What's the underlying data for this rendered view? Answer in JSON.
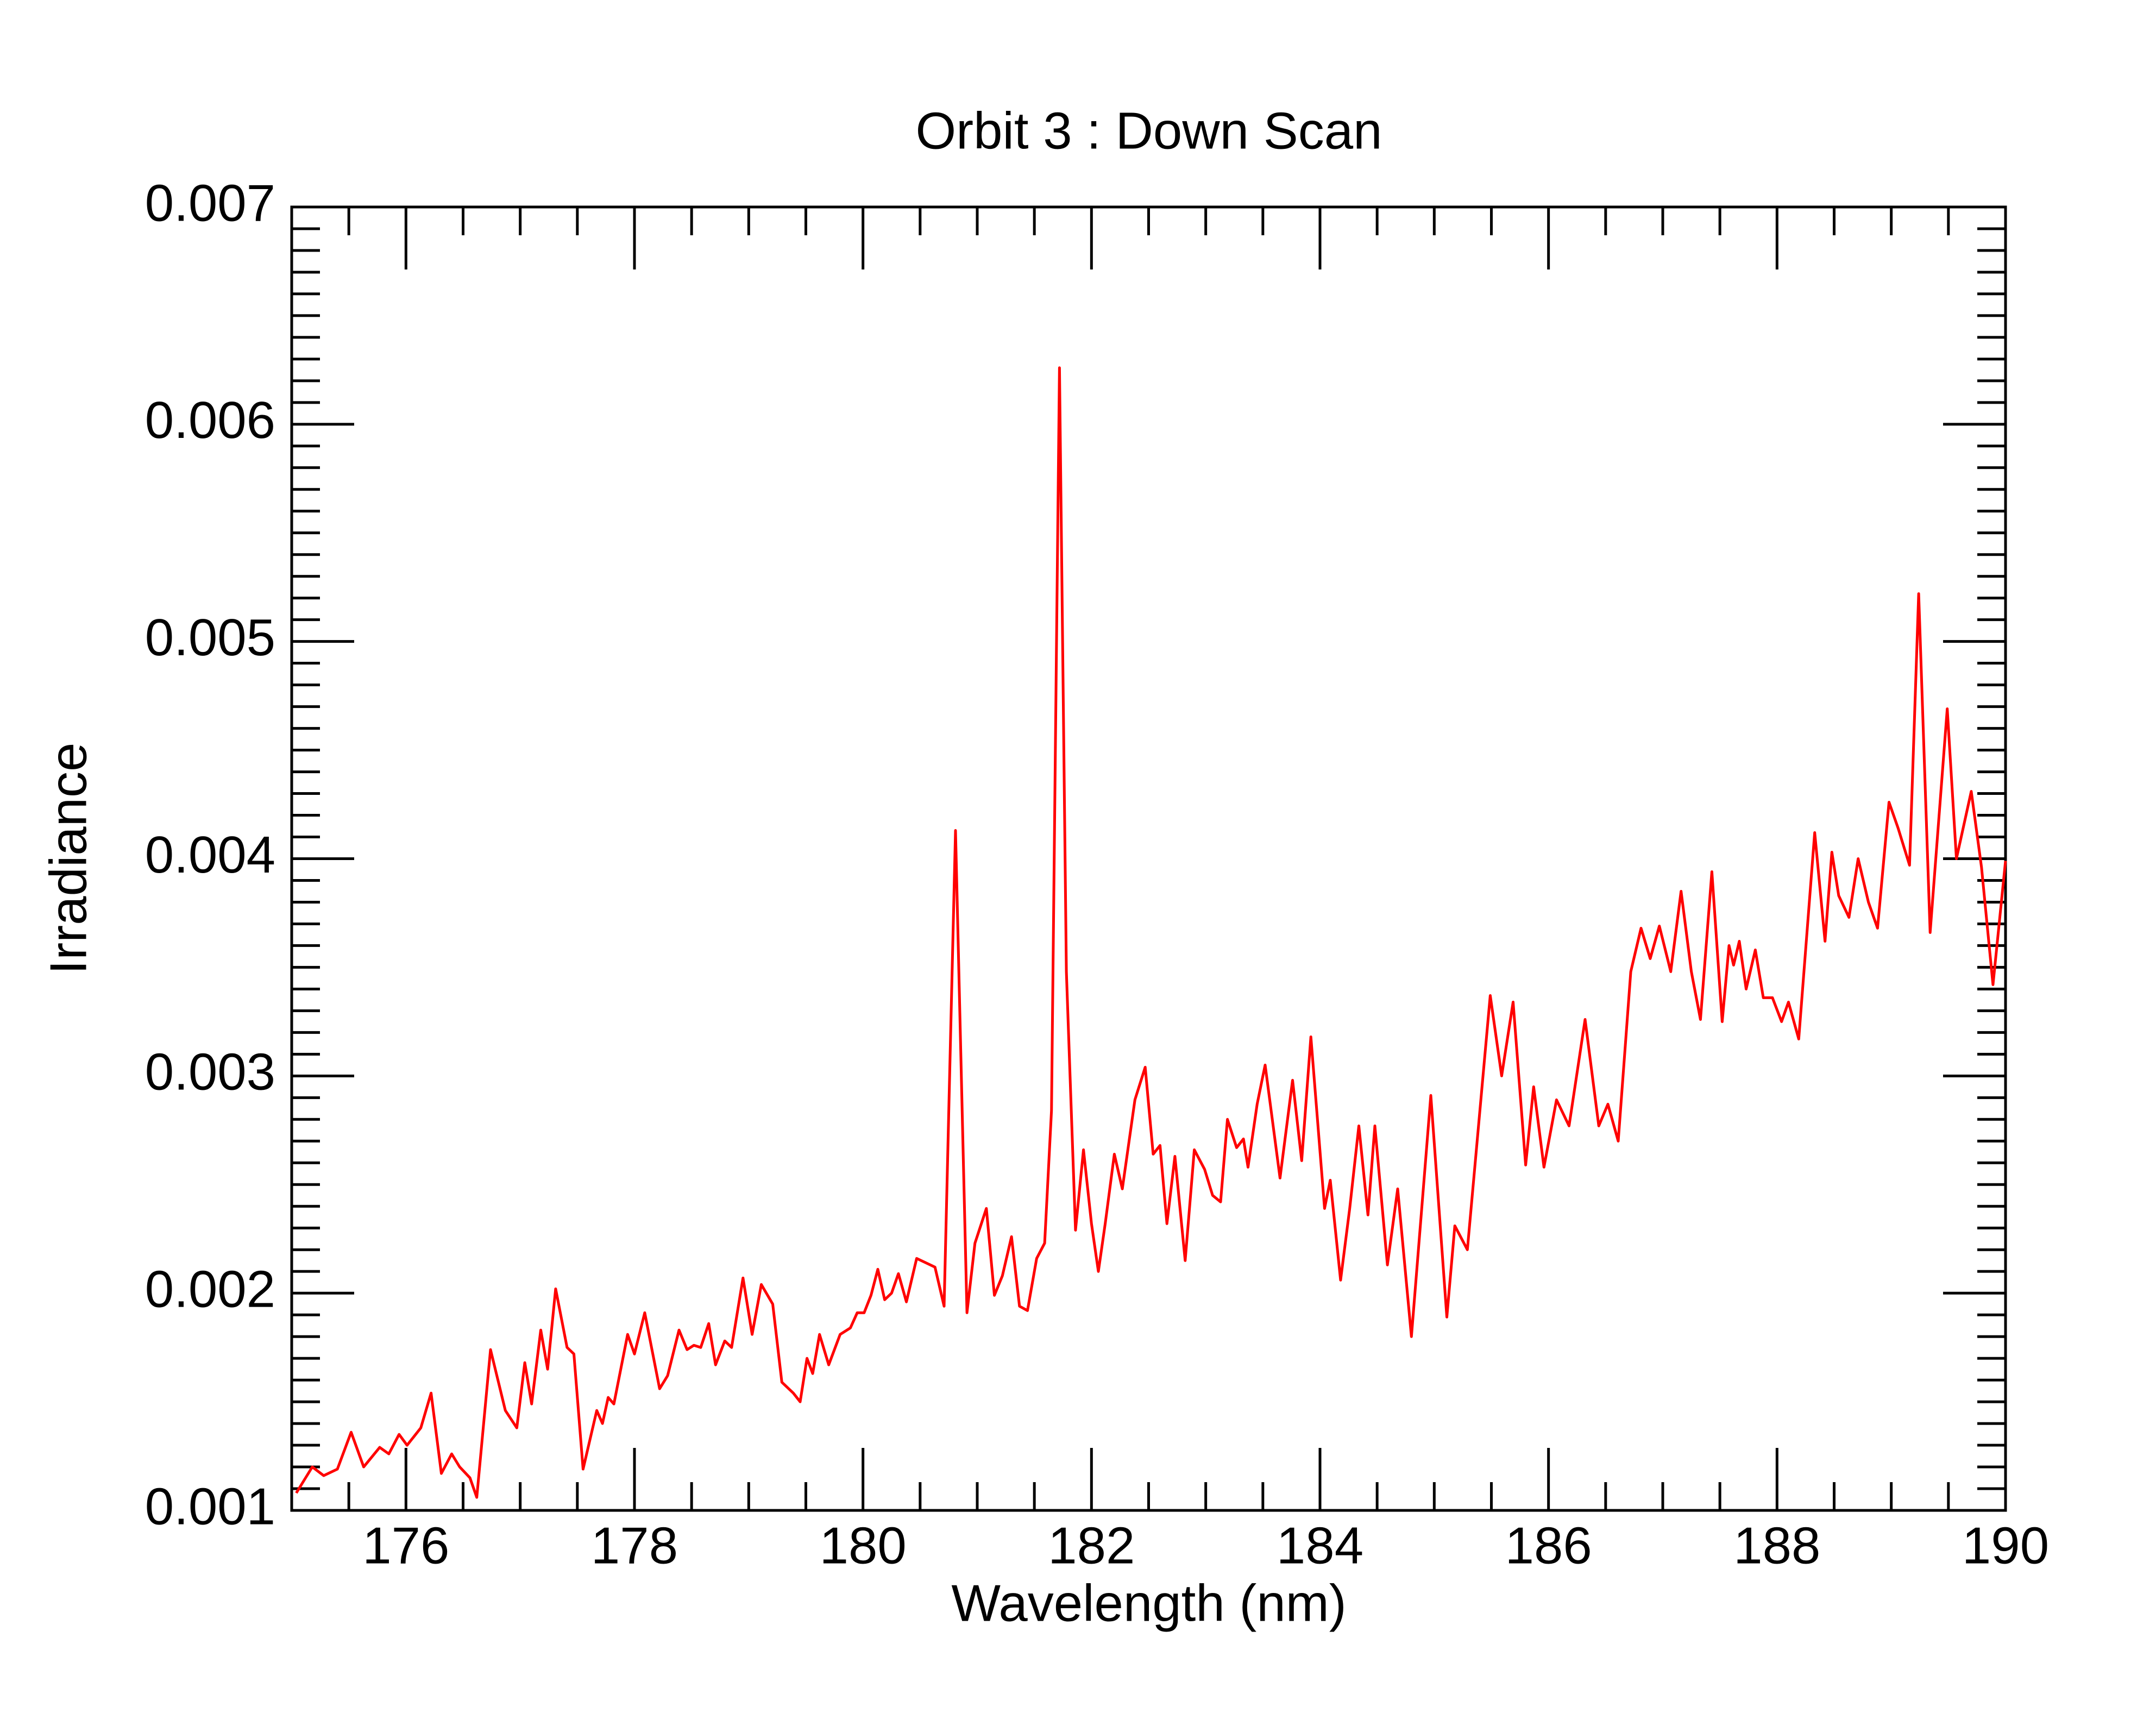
{
  "chart_data": {
    "type": "line",
    "title": "Orbit 3 : Down Scan",
    "x_label": "Wavelength (nm)",
    "y_label": "Irradiance",
    "xlim": [
      175,
      190
    ],
    "ylim": [
      0.001,
      0.007
    ],
    "xticks": [
      176,
      178,
      180,
      182,
      184,
      186,
      188,
      190
    ],
    "yticks": [
      0.001,
      0.002,
      0.003,
      0.004,
      0.005,
      0.006,
      0.007
    ],
    "xminorticks": [
      175.5,
      176.5,
      177,
      177.5,
      178.5,
      179,
      179.5,
      180.5,
      181,
      181.5,
      182.5,
      183,
      183.5,
      184.5,
      185,
      185.5,
      186.5,
      187,
      187.5,
      188.5,
      189,
      189.5
    ],
    "yminorticks": [
      0.0011,
      0.0012,
      0.0013,
      0.0014,
      0.0015,
      0.0016,
      0.0017,
      0.0018,
      0.0019,
      0.0021,
      0.0022,
      0.0023,
      0.0024,
      0.0025,
      0.0026,
      0.0027,
      0.0028,
      0.0029,
      0.0031,
      0.0032,
      0.0033,
      0.0034,
      0.0035,
      0.0036,
      0.0037,
      0.0038,
      0.0039,
      0.0041,
      0.0042,
      0.0043,
      0.0044,
      0.0045,
      0.0046,
      0.0047,
      0.0048,
      0.0049,
      0.0051,
      0.0052,
      0.0053,
      0.0054,
      0.0055,
      0.0056,
      0.0057,
      0.0058,
      0.0059,
      0.0061,
      0.0062,
      0.0063,
      0.0064,
      0.0065,
      0.0066,
      0.0067,
      0.0068,
      0.0069
    ],
    "grid": false,
    "series": [
      {
        "color": "#ff0000",
        "x": [
          175.04,
          175.18,
          175.28,
          175.4,
          175.52,
          175.63,
          175.77,
          175.85,
          175.94,
          176.01,
          176.13,
          176.22,
          176.31,
          176.4,
          176.47,
          176.56,
          176.62,
          176.74,
          176.87,
          176.97,
          177.04,
          177.1,
          177.18,
          177.24,
          177.31,
          177.41,
          177.47,
          177.55,
          177.67,
          177.72,
          177.77,
          177.82,
          177.94,
          178.0,
          178.09,
          178.22,
          178.29,
          178.39,
          178.46,
          178.52,
          178.58,
          178.65,
          178.71,
          178.79,
          178.85,
          178.95,
          179.03,
          179.11,
          179.21,
          179.29,
          179.39,
          179.45,
          179.51,
          179.56,
          179.62,
          179.7,
          179.8,
          179.89,
          179.95,
          180.01,
          180.07,
          180.13,
          180.19,
          180.25,
          180.31,
          180.38,
          180.47,
          180.55,
          180.63,
          180.71,
          180.81,
          180.91,
          180.98,
          181.08,
          181.15,
          181.22,
          181.3,
          181.37,
          181.44,
          181.52,
          181.59,
          181.65,
          181.72,
          181.78,
          181.86,
          181.93,
          182.0,
          182.06,
          182.12,
          182.2,
          182.27,
          182.38,
          182.47,
          182.54,
          182.6,
          182.66,
          182.73,
          182.82,
          182.9,
          182.99,
          183.06,
          183.13,
          183.19,
          183.27,
          183.33,
          183.37,
          183.45,
          183.52,
          183.65,
          183.76,
          183.84,
          183.92,
          184.04,
          184.09,
          184.18,
          184.26,
          184.34,
          184.42,
          184.48,
          184.59,
          184.68,
          184.8,
          184.97,
          185.11,
          185.18,
          185.29,
          185.49,
          185.59,
          185.69,
          185.8,
          185.87,
          185.96,
          186.07,
          186.18,
          186.32,
          186.44,
          186.52,
          186.61,
          186.72,
          186.81,
          186.89,
          186.97,
          187.07,
          187.16,
          187.25,
          187.33,
          187.43,
          187.52,
          187.58,
          187.62,
          187.67,
          187.73,
          187.81,
          187.88,
          187.96,
          188.04,
          188.1,
          188.19,
          188.33,
          188.42,
          188.48,
          188.54,
          188.63,
          188.71,
          188.8,
          188.88,
          188.98,
          189.06,
          189.16,
          189.24,
          189.34,
          189.49,
          189.57,
          189.7,
          189.79,
          189.89,
          190.0
        ],
        "values": [
          0.00108,
          0.0012,
          0.00116,
          0.00119,
          0.00136,
          0.0012,
          0.00129,
          0.00126,
          0.00135,
          0.0013,
          0.00138,
          0.00154,
          0.00117,
          0.00126,
          0.0012,
          0.00115,
          0.00106,
          0.00174,
          0.00146,
          0.00138,
          0.00168,
          0.00149,
          0.00183,
          0.00165,
          0.00202,
          0.00175,
          0.00172,
          0.00119,
          0.00146,
          0.0014,
          0.00152,
          0.00149,
          0.00181,
          0.00172,
          0.00191,
          0.00156,
          0.00162,
          0.00183,
          0.00174,
          0.00176,
          0.00175,
          0.00186,
          0.00167,
          0.00178,
          0.00175,
          0.00207,
          0.00181,
          0.00204,
          0.00195,
          0.00159,
          0.00154,
          0.0015,
          0.0017,
          0.00163,
          0.00181,
          0.00167,
          0.00181,
          0.00184,
          0.00191,
          0.00191,
          0.00199,
          0.00211,
          0.00197,
          0.002,
          0.00209,
          0.00196,
          0.00216,
          0.00214,
          0.00212,
          0.00194,
          0.00413,
          0.00191,
          0.00223,
          0.00239,
          0.00199,
          0.00208,
          0.00226,
          0.00194,
          0.00192,
          0.00216,
          0.00223,
          0.00284,
          0.00626,
          0.00348,
          0.00229,
          0.00266,
          0.00232,
          0.0021,
          0.00232,
          0.00264,
          0.00248,
          0.00289,
          0.00304,
          0.00264,
          0.00268,
          0.00232,
          0.00263,
          0.00215,
          0.00266,
          0.00257,
          0.00245,
          0.00242,
          0.0028,
          0.00267,
          0.00271,
          0.00258,
          0.00287,
          0.00305,
          0.00253,
          0.00298,
          0.00261,
          0.00318,
          0.00239,
          0.00252,
          0.00206,
          0.00239,
          0.00277,
          0.00236,
          0.00277,
          0.00213,
          0.00248,
          0.0018,
          0.00291,
          0.00189,
          0.00231,
          0.0022,
          0.00337,
          0.003,
          0.00334,
          0.00259,
          0.00295,
          0.00258,
          0.00289,
          0.00277,
          0.00326,
          0.00277,
          0.00287,
          0.0027,
          0.00348,
          0.00368,
          0.00354,
          0.00369,
          0.00348,
          0.00385,
          0.00348,
          0.00326,
          0.00394,
          0.00325,
          0.0036,
          0.00351,
          0.00362,
          0.0034,
          0.00358,
          0.00336,
          0.00336,
          0.00325,
          0.00334,
          0.00317,
          0.00412,
          0.00362,
          0.00403,
          0.00383,
          0.00373,
          0.004,
          0.0038,
          0.00368,
          0.00426,
          0.00414,
          0.00397,
          0.00522,
          0.00366,
          0.00469,
          0.004,
          0.00431,
          0.00396,
          0.00342,
          0.00399
        ]
      }
    ]
  }
}
